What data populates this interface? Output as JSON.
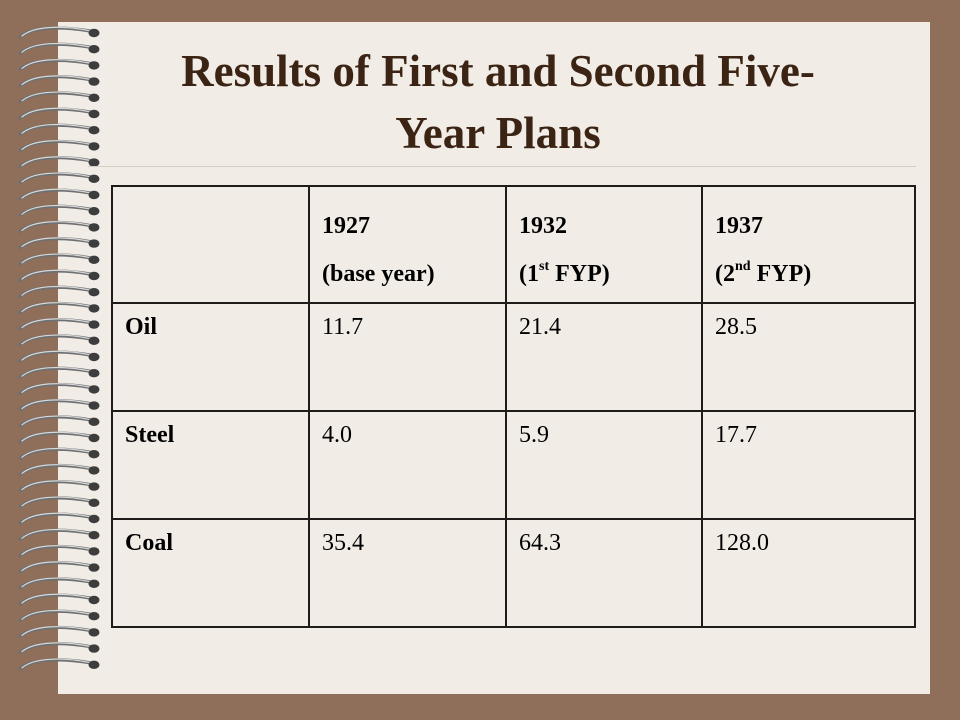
{
  "slide": {
    "title_line1": "Results of First and Second Five-",
    "title_line2": "Year Plans",
    "table": {
      "columns": [
        {
          "year": "1927",
          "note": "(base year)"
        },
        {
          "year": "1932",
          "note_prefix": "(1",
          "note_sup": "st",
          "note_suffix": " FYP)"
        },
        {
          "year": "1937",
          "note_prefix": "(2",
          "note_sup": "nd",
          "note_suffix": " FYP)"
        }
      ],
      "rows": [
        {
          "label": "Oil",
          "values": [
            "11.7",
            "21.4",
            "28.5"
          ]
        },
        {
          "label": "Steel",
          "values": [
            "4.0",
            "5.9",
            "17.7"
          ]
        },
        {
          "label": "Coal",
          "values": [
            "35.4",
            "64.3",
            "128.0"
          ]
        }
      ]
    }
  },
  "colors": {
    "background": "#8f6e5a",
    "paper": "#f1ece6",
    "title": "#3b2414",
    "table_border": "#1f1b18"
  },
  "icons": {
    "spiral_binding": "spiral-binding-icon"
  }
}
